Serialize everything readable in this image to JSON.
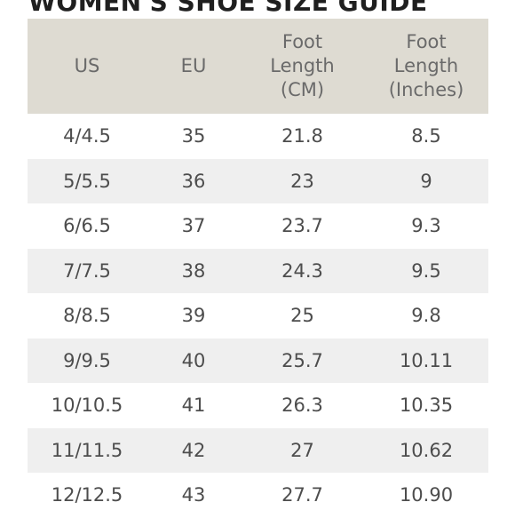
{
  "title": "WOMEN'S SHOE SIZE GUIDE",
  "table": {
    "headers": [
      "US",
      "EU",
      "Foot\nLength\n(CM)",
      "Foot\nLength\n(Inches)"
    ],
    "rows": [
      [
        "4/4.5",
        "35",
        "21.8",
        "8.5"
      ],
      [
        "5/5.5",
        "36",
        "23",
        "9"
      ],
      [
        "6/6.5",
        "37",
        "23.7",
        "9.3"
      ],
      [
        "7/7.5",
        "38",
        "24.3",
        "9.5"
      ],
      [
        "8/8.5",
        "39",
        "25",
        "9.8"
      ],
      [
        "9/9.5",
        "40",
        "25.7",
        "10.11"
      ],
      [
        "10/10.5",
        "41",
        "26.3",
        "10.35"
      ],
      [
        "11/11.5",
        "42",
        "27",
        "10.62"
      ],
      [
        "12/12.5",
        "43",
        "27.7",
        "10.90"
      ]
    ]
  },
  "colors": {
    "header_bg": "#dedbd2",
    "alt_row_bg": "#efefef",
    "text": "#4d4d4d"
  }
}
